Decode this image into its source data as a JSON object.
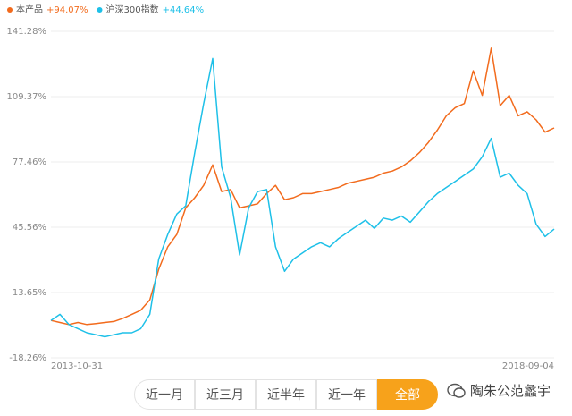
{
  "chart_data": {
    "type": "line",
    "categories": [
      "2013-10-31",
      null,
      null,
      null,
      null,
      null,
      null,
      null,
      null,
      null,
      null,
      null,
      null,
      null,
      null,
      null,
      null,
      null,
      null,
      null,
      null,
      null,
      null,
      null,
      null,
      null,
      null,
      null,
      null,
      null,
      null,
      null,
      null,
      null,
      null,
      null,
      null,
      null,
      null,
      null,
      null,
      null,
      null,
      null,
      null,
      null,
      null,
      null,
      null,
      null,
      null,
      null,
      null,
      null,
      null,
      null,
      "2018-09-04"
    ],
    "series": [
      {
        "name": "本产品",
        "change_label": "+94.07%",
        "color": "#f26b1d",
        "values": [
          0,
          -1,
          -2,
          -1,
          -2,
          -1.5,
          -1,
          -0.5,
          1,
          3,
          5,
          10,
          25,
          36,
          42,
          55,
          60,
          66,
          76,
          63,
          64,
          55,
          56,
          57,
          62,
          66,
          59,
          60,
          62,
          62,
          63,
          64,
          65,
          67,
          68,
          69,
          70,
          72,
          73,
          75,
          78,
          82,
          87,
          93,
          100,
          104,
          106,
          122,
          110,
          133,
          105,
          110,
          100,
          102,
          98,
          92,
          94.07
        ]
      },
      {
        "name": "沪深300指数",
        "change_label": "+44.64%",
        "color": "#1ec0e8",
        "values": [
          0,
          3,
          -2,
          -4,
          -6,
          -7,
          -8,
          -7,
          -6,
          -6,
          -4,
          3,
          30,
          42,
          52,
          56,
          82,
          106,
          128,
          75,
          60,
          32,
          55,
          63,
          64,
          36,
          24,
          30,
          33,
          36,
          38,
          36,
          40,
          43,
          46,
          49,
          45,
          50,
          49,
          51,
          48,
          53,
          58,
          62,
          65,
          68,
          71,
          74,
          80,
          89,
          70,
          72,
          66,
          62,
          47,
          41,
          44.64
        ]
      }
    ],
    "ylim": [
      -18.26,
      141.28
    ],
    "yticks": [
      {
        "value": 141.28,
        "label": "141.28%"
      },
      {
        "value": 109.37,
        "label": "109.37%"
      },
      {
        "value": 77.46,
        "label": "77.46%"
      },
      {
        "value": 45.56,
        "label": "45.56%"
      },
      {
        "value": 13.65,
        "label": "13.65%"
      },
      {
        "value": -18.26,
        "label": "-18.26%"
      }
    ],
    "grid": true
  },
  "controls": {
    "buttons": [
      {
        "label": "近一月",
        "active": false
      },
      {
        "label": "近三月",
        "active": false
      },
      {
        "label": "近半年",
        "active": false
      },
      {
        "label": "近一年",
        "active": false
      },
      {
        "label": "全部",
        "active": true
      }
    ]
  },
  "watermark": "陶朱公范蠡宇"
}
